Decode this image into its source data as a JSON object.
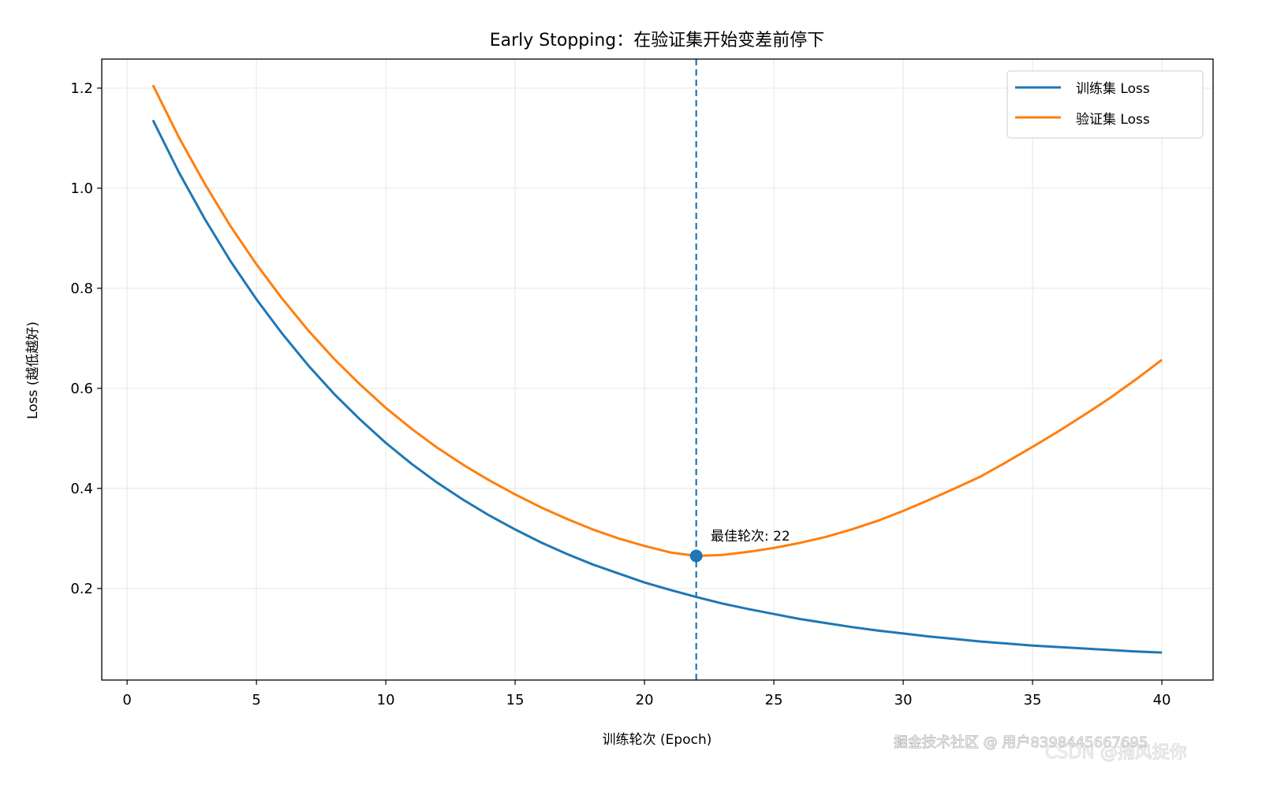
{
  "chart_data": {
    "type": "line",
    "title": "Early Stopping：在验证集开始变差前停下",
    "xlabel": "训练轮次 (Epoch)",
    "ylabel": "Loss (越低越好)",
    "xlim": [
      -0.98,
      41.98
    ],
    "ylim": [
      0.017,
      1.258
    ],
    "xticks": [
      "0",
      "5",
      "10",
      "15",
      "20",
      "25",
      "30",
      "35",
      "40"
    ],
    "yticks": [
      "0.2",
      "0.4",
      "0.6",
      "0.8",
      "1.0",
      "1.2"
    ],
    "grid": true,
    "legend_position": "top-right",
    "x": [
      1,
      2,
      3,
      4,
      5,
      6,
      7,
      8,
      9,
      10,
      11,
      12,
      13,
      14,
      15,
      16,
      17,
      18,
      19,
      20,
      21,
      22,
      23,
      24,
      25,
      26,
      27,
      28,
      29,
      30,
      31,
      32,
      33,
      34,
      35,
      36,
      37,
      38,
      39,
      40
    ],
    "series": [
      {
        "name": "训练集 Loss",
        "color": "#1f77b4",
        "values": [
          1.136,
          1.032,
          0.939,
          0.854,
          0.778,
          0.709,
          0.646,
          0.589,
          0.538,
          0.491,
          0.449,
          0.411,
          0.377,
          0.346,
          0.318,
          0.292,
          0.269,
          0.248,
          0.23,
          0.212,
          0.197,
          0.183,
          0.17,
          0.159,
          0.149,
          0.139,
          0.131,
          0.123,
          0.116,
          0.11,
          0.104,
          0.099,
          0.094,
          0.09,
          0.086,
          0.083,
          0.08,
          0.077,
          0.074,
          0.072
        ]
      },
      {
        "name": "验证集 Loss",
        "color": "#ff7f0e",
        "values": [
          1.206,
          1.102,
          1.009,
          0.924,
          0.848,
          0.779,
          0.716,
          0.659,
          0.608,
          0.561,
          0.519,
          0.481,
          0.447,
          0.416,
          0.388,
          0.362,
          0.339,
          0.318,
          0.3,
          0.285,
          0.272,
          0.265,
          0.267,
          0.273,
          0.281,
          0.291,
          0.303,
          0.318,
          0.335,
          0.355,
          0.377,
          0.4,
          0.424,
          0.453,
          0.483,
          0.514,
          0.547,
          0.581,
          0.618,
          0.657
        ]
      }
    ],
    "best_epoch": {
      "x": 22,
      "y": 0.265,
      "label": "最佳轮次: 22",
      "color": "#1f77b4"
    }
  },
  "watermarks": [
    "掘金技术社区 @ 用户8398445667695",
    "CSDN @捕风捉你"
  ]
}
